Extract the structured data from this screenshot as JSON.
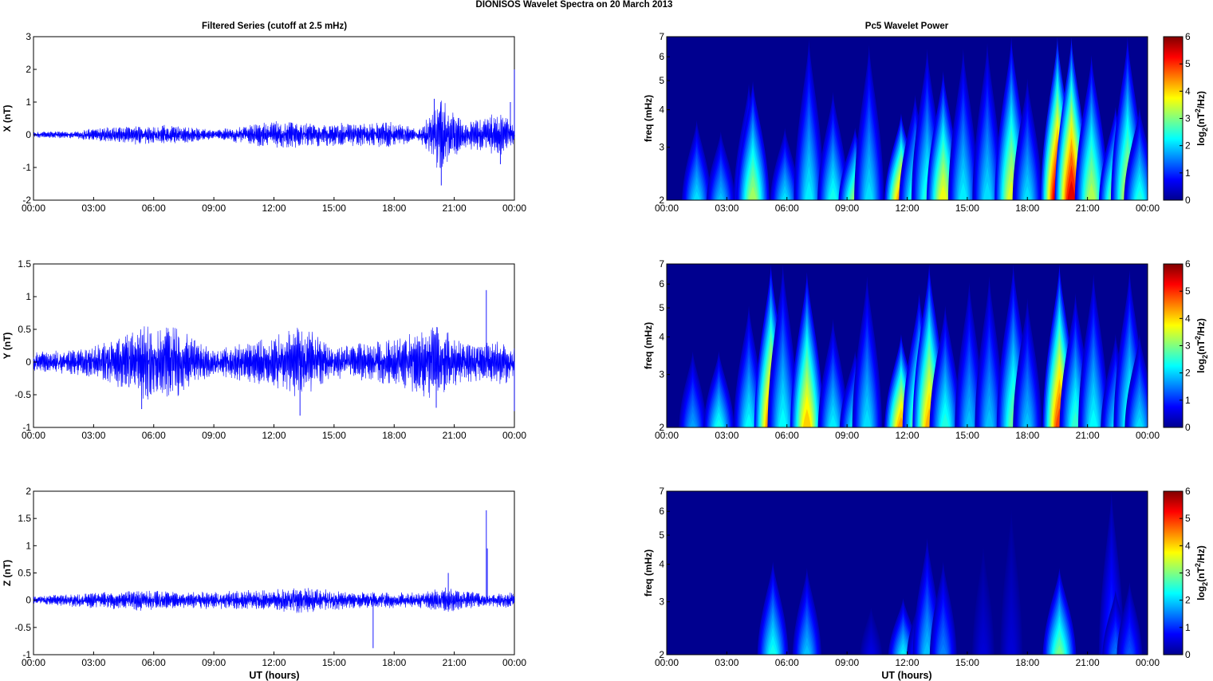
{
  "figure": {
    "title": "DIONISOS Wavelet Spectra on 20 March     2013",
    "left_title": "Filtered Series (cutoff at 2.5 mHz)",
    "right_title": "Pc5 Wavelet Power",
    "xlabel": "UT (hours)"
  },
  "colormap": {
    "name": "jet",
    "stops": [
      "#00008f",
      "#0000ff",
      "#0080ff",
      "#00ffff",
      "#80ff80",
      "#ffff00",
      "#ff8000",
      "#ff0000",
      "#800000"
    ]
  },
  "chart_data": [
    {
      "type": "line",
      "id": "ts-x",
      "ylabel": "X (nT)",
      "line_color": "#0000ff",
      "x_range_hours": [
        0,
        24
      ],
      "x_ticks": [
        "00:00",
        "03:00",
        "06:00",
        "09:00",
        "12:00",
        "15:00",
        "18:00",
        "21:00",
        "00:00"
      ],
      "ylim": [
        -2,
        3
      ],
      "y_ticks": [
        "-2",
        "-1",
        "0",
        "1",
        "2",
        "3"
      ],
      "envelope": [
        {
          "t": 0,
          "amp": 0.1
        },
        {
          "t": 2,
          "amp": 0.12
        },
        {
          "t": 4.4,
          "amp": 0.3
        },
        {
          "t": 7.2,
          "amp": 0.3
        },
        {
          "t": 9,
          "amp": 0.15
        },
        {
          "t": 12.2,
          "amp": 0.45
        },
        {
          "t": 14,
          "amp": 0.35
        },
        {
          "t": 17.8,
          "amp": 0.4
        },
        {
          "t": 19.3,
          "amp": 0.2
        },
        {
          "t": 20.2,
          "amp": 1.2
        },
        {
          "t": 21.5,
          "amp": 0.4
        },
        {
          "t": 23.3,
          "amp": 0.7
        },
        {
          "t": 24,
          "amp": 0.3
        }
      ],
      "spikes": [
        {
          "t": 20.35,
          "v": -1.55
        },
        {
          "t": 20.0,
          "v": 1.1
        },
        {
          "t": 23.8,
          "v": 1.0
        },
        {
          "t": 23.3,
          "v": -0.9
        },
        {
          "t": 24.0,
          "v": 2.0
        }
      ]
    },
    {
      "type": "line",
      "id": "ts-y",
      "ylabel": "Y (nT)",
      "line_color": "#0000ff",
      "x_range_hours": [
        0,
        24
      ],
      "x_ticks": [
        "00:00",
        "03:00",
        "06:00",
        "09:00",
        "12:00",
        "15:00",
        "18:00",
        "21:00",
        "00:00"
      ],
      "ylim": [
        -1,
        1.5
      ],
      "y_ticks": [
        "-1",
        "-0.5",
        "0",
        "0.5",
        "1",
        "1.5"
      ],
      "envelope": [
        {
          "t": 0,
          "amp": 0.15
        },
        {
          "t": 2,
          "amp": 0.2
        },
        {
          "t": 3.5,
          "amp": 0.3
        },
        {
          "t": 5.5,
          "amp": 0.6
        },
        {
          "t": 7.2,
          "amp": 0.55
        },
        {
          "t": 9,
          "amp": 0.2
        },
        {
          "t": 12,
          "amp": 0.4
        },
        {
          "t": 13.4,
          "amp": 0.6
        },
        {
          "t": 15,
          "amp": 0.25
        },
        {
          "t": 18,
          "amp": 0.35
        },
        {
          "t": 20,
          "amp": 0.6
        },
        {
          "t": 21.5,
          "amp": 0.3
        },
        {
          "t": 23.5,
          "amp": 0.35
        },
        {
          "t": 24,
          "amp": 0.3
        }
      ],
      "spikes": [
        {
          "t": 22.6,
          "v": 1.1
        },
        {
          "t": 13.3,
          "v": -0.82
        },
        {
          "t": 5.4,
          "v": -0.72
        },
        {
          "t": 20.1,
          "v": -0.7
        },
        {
          "t": 24.0,
          "v": -0.75
        }
      ]
    },
    {
      "type": "line",
      "id": "ts-z",
      "ylabel": "Z (nT)",
      "line_color": "#0000ff",
      "x_range_hours": [
        0,
        24
      ],
      "x_ticks": [
        "00:00",
        "03:00",
        "06:00",
        "09:00",
        "12:00",
        "15:00",
        "18:00",
        "21:00",
        "00:00"
      ],
      "ylim": [
        -1,
        2
      ],
      "y_ticks": [
        "-1",
        "-0.5",
        "0",
        "0.5",
        "1",
        "1.5",
        "2"
      ],
      "envelope": [
        {
          "t": 0,
          "amp": 0.08
        },
        {
          "t": 5.4,
          "amp": 0.2
        },
        {
          "t": 7.2,
          "amp": 0.15
        },
        {
          "t": 12,
          "amp": 0.2
        },
        {
          "t": 13.3,
          "amp": 0.25
        },
        {
          "t": 16,
          "amp": 0.15
        },
        {
          "t": 19.5,
          "amp": 0.15
        },
        {
          "t": 20.3,
          "amp": 0.25
        },
        {
          "t": 22.6,
          "amp": 0.12
        },
        {
          "t": 24,
          "amp": 0.15
        }
      ],
      "spikes": [
        {
          "t": 22.6,
          "v": 1.65
        },
        {
          "t": 22.65,
          "v": 0.95
        },
        {
          "t": 16.95,
          "v": -0.88
        },
        {
          "t": 20.7,
          "v": 0.5
        }
      ]
    },
    {
      "type": "heatmap",
      "id": "wp-x",
      "ylabel": "freq (mHz)",
      "y_scale": "log",
      "ylim_mHz": [
        2,
        7
      ],
      "y_ticks": [
        "2",
        "3",
        "4",
        "5",
        "6",
        "7"
      ],
      "x_range_hours": [
        0,
        24
      ],
      "x_ticks": [
        "00:00",
        "03:00",
        "06:00",
        "09:00",
        "12:00",
        "15:00",
        "18:00",
        "21:00",
        "00:00"
      ],
      "colorbar_label": "log2(nT^2/Hz)",
      "colorbar_ticks": [
        "0",
        "1",
        "2",
        "3",
        "4",
        "5",
        "6"
      ],
      "clim": [
        0,
        6
      ],
      "bursts": [
        {
          "t": 1.5,
          "peak": 2.2,
          "top_mHz": 3.6
        },
        {
          "t": 2.7,
          "peak": 2.0,
          "top_mHz": 3.3
        },
        {
          "t": 4.1,
          "peak": 2.4,
          "top_mHz": 4.8
        },
        {
          "t": 4.3,
          "peak": 3.4,
          "top_mHz": 4.9
        },
        {
          "t": 5.9,
          "peak": 2.2,
          "top_mHz": 3.4
        },
        {
          "t": 7.1,
          "peak": 2.3,
          "top_mHz": 6.8
        },
        {
          "t": 8.3,
          "peak": 2.5,
          "top_mHz": 4.5
        },
        {
          "t": 9.4,
          "peak": 3.3,
          "top_mHz": 3.4
        },
        {
          "t": 10.1,
          "peak": 2.2,
          "top_mHz": 6.5
        },
        {
          "t": 11.7,
          "peak": 4.8,
          "top_mHz": 3.8
        },
        {
          "t": 12.4,
          "peak": 2.8,
          "top_mHz": 4.4
        },
        {
          "t": 13.0,
          "peak": 2.6,
          "top_mHz": 6.3
        },
        {
          "t": 13.8,
          "peak": 3.9,
          "top_mHz": 5.3
        },
        {
          "t": 14.8,
          "peak": 2.3,
          "top_mHz": 6.3
        },
        {
          "t": 16.0,
          "peak": 2.2,
          "top_mHz": 6.6
        },
        {
          "t": 17.2,
          "peak": 3.8,
          "top_mHz": 6.9
        },
        {
          "t": 18.0,
          "peak": 2.2,
          "top_mHz": 5.0
        },
        {
          "t": 19.5,
          "peak": 6.0,
          "top_mHz": 6.9
        },
        {
          "t": 20.2,
          "peak": 5.8,
          "top_mHz": 6.9
        },
        {
          "t": 21.2,
          "peak": 3.5,
          "top_mHz": 6.0
        },
        {
          "t": 22.4,
          "peak": 3.6,
          "top_mHz": 4.0
        },
        {
          "t": 23.0,
          "peak": 3.7,
          "top_mHz": 6.9
        },
        {
          "t": 23.6,
          "peak": 2.6,
          "top_mHz": 4.0
        }
      ]
    },
    {
      "type": "heatmap",
      "id": "wp-y",
      "ylabel": "freq (mHz)",
      "y_scale": "log",
      "ylim_mHz": [
        2,
        7
      ],
      "y_ticks": [
        "2",
        "3",
        "4",
        "5",
        "6",
        "7"
      ],
      "x_range_hours": [
        0,
        24
      ],
      "x_ticks": [
        "00:00",
        "03:00",
        "06:00",
        "09:00",
        "12:00",
        "15:00",
        "18:00",
        "21:00",
        "00:00"
      ],
      "colorbar_label": "log2(nT^2/Hz)",
      "colorbar_ticks": [
        "0",
        "1",
        "2",
        "3",
        "4",
        "5",
        "6"
      ],
      "clim": [
        0,
        6
      ],
      "bursts": [
        {
          "t": 1.3,
          "peak": 1.8,
          "top_mHz": 3.5
        },
        {
          "t": 2.6,
          "peak": 2.5,
          "top_mHz": 3.5
        },
        {
          "t": 4.1,
          "peak": 2.4,
          "top_mHz": 5.0
        },
        {
          "t": 5.2,
          "peak": 5.0,
          "top_mHz": 6.9
        },
        {
          "t": 5.8,
          "peak": 2.4,
          "top_mHz": 6.9
        },
        {
          "t": 7.0,
          "peak": 4.3,
          "top_mHz": 6.5
        },
        {
          "t": 8.3,
          "peak": 2.3,
          "top_mHz": 4.5
        },
        {
          "t": 9.4,
          "peak": 2.5,
          "top_mHz": 3.5
        },
        {
          "t": 10.0,
          "peak": 2.2,
          "top_mHz": 6.3
        },
        {
          "t": 11.7,
          "peak": 4.6,
          "top_mHz": 4.0
        },
        {
          "t": 12.6,
          "peak": 3.8,
          "top_mHz": 5.5
        },
        {
          "t": 13.1,
          "peak": 4.5,
          "top_mHz": 6.9
        },
        {
          "t": 13.9,
          "peak": 2.6,
          "top_mHz": 5.0
        },
        {
          "t": 15.1,
          "peak": 2.0,
          "top_mHz": 6.0
        },
        {
          "t": 16.1,
          "peak": 2.0,
          "top_mHz": 6.3
        },
        {
          "t": 17.3,
          "peak": 3.0,
          "top_mHz": 6.9
        },
        {
          "t": 18.0,
          "peak": 2.0,
          "top_mHz": 5.3
        },
        {
          "t": 19.6,
          "peak": 5.2,
          "top_mHz": 6.9
        },
        {
          "t": 20.4,
          "peak": 2.7,
          "top_mHz": 5.5
        },
        {
          "t": 21.3,
          "peak": 2.4,
          "top_mHz": 6.4
        },
        {
          "t": 22.4,
          "peak": 2.2,
          "top_mHz": 4.0
        },
        {
          "t": 23.1,
          "peak": 2.7,
          "top_mHz": 6.6
        },
        {
          "t": 23.6,
          "peak": 2.2,
          "top_mHz": 4.0
        }
      ]
    },
    {
      "type": "heatmap",
      "id": "wp-z",
      "ylabel": "freq (mHz)",
      "y_scale": "log",
      "ylim_mHz": [
        2,
        7
      ],
      "y_ticks": [
        "2",
        "3",
        "4",
        "5",
        "6",
        "7"
      ],
      "x_range_hours": [
        0,
        24
      ],
      "x_ticks": [
        "00:00",
        "03:00",
        "06:00",
        "09:00",
        "12:00",
        "15:00",
        "18:00",
        "21:00",
        "00:00"
      ],
      "colorbar_label": "log2(nT^2/Hz)",
      "colorbar_ticks": [
        "0",
        "1",
        "2",
        "3",
        "4",
        "5",
        "6"
      ],
      "clim": [
        0,
        6
      ],
      "bursts": [
        {
          "t": 5.3,
          "peak": 2.5,
          "top_mHz": 4.0
        },
        {
          "t": 7.0,
          "peak": 2.0,
          "top_mHz": 3.8
        },
        {
          "t": 10.2,
          "peak": 0.6,
          "top_mHz": 2.8
        },
        {
          "t": 11.8,
          "peak": 2.3,
          "top_mHz": 3.0
        },
        {
          "t": 12.6,
          "peak": 1.2,
          "top_mHz": 3.0
        },
        {
          "t": 13.0,
          "peak": 2.0,
          "top_mHz": 4.8
        },
        {
          "t": 13.8,
          "peak": 1.6,
          "top_mHz": 4.0
        },
        {
          "t": 15.8,
          "peak": 0.5,
          "top_mHz": 4.5
        },
        {
          "t": 17.2,
          "peak": 0.5,
          "top_mHz": 6.0
        },
        {
          "t": 19.6,
          "peak": 3.1,
          "top_mHz": 3.8
        },
        {
          "t": 22.2,
          "peak": 1.2,
          "top_mHz": 6.9
        },
        {
          "t": 22.4,
          "peak": 1.5,
          "top_mHz": 3.2
        },
        {
          "t": 23.1,
          "peak": 1.3,
          "top_mHz": 3.4
        }
      ]
    }
  ]
}
